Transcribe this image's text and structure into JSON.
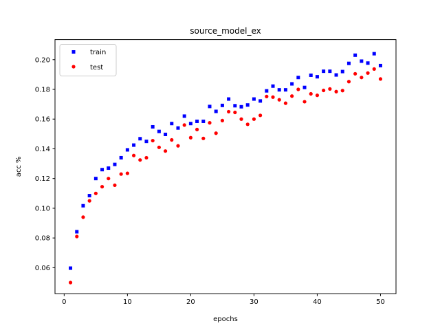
{
  "chart_data": {
    "type": "scatter",
    "title": "source_model_ex",
    "xlabel": "epochs",
    "ylabel": "acc %",
    "xlim": [
      -1.45,
      52.45
    ],
    "ylim": [
      0.0425,
      0.2135
    ],
    "xticks": [
      0,
      10,
      20,
      30,
      40,
      50
    ],
    "yticks": [
      0.06,
      0.08,
      0.1,
      0.12,
      0.14,
      0.16,
      0.18,
      0.2
    ],
    "ytick_labels": [
      "0.06",
      "0.08",
      "0.10",
      "0.12",
      "0.14",
      "0.16",
      "0.18",
      "0.20"
    ],
    "grid": false,
    "legend_position": "top-left",
    "series": [
      {
        "name": "train",
        "color": "#0000ff",
        "marker": "square",
        "x": [
          1,
          2,
          3,
          4,
          5,
          6,
          7,
          8,
          9,
          10,
          11,
          12,
          13,
          14,
          15,
          16,
          17,
          18,
          19,
          20,
          21,
          22,
          23,
          24,
          25,
          26,
          27,
          28,
          29,
          30,
          31,
          32,
          33,
          34,
          35,
          36,
          37,
          38,
          39,
          40,
          41,
          42,
          43,
          44,
          45,
          46,
          47,
          48,
          49,
          50
        ],
        "y": [
          0.0597,
          0.0842,
          0.1017,
          0.1085,
          0.12,
          0.126,
          0.127,
          0.1295,
          0.134,
          0.1393,
          0.1425,
          0.1468,
          0.145,
          0.1548,
          0.1517,
          0.1497,
          0.157,
          0.154,
          0.162,
          0.157,
          0.1585,
          0.1585,
          0.1685,
          0.1652,
          0.1692,
          0.1735,
          0.169,
          0.1683,
          0.1695,
          0.1735,
          0.1722,
          0.179,
          0.1822,
          0.1797,
          0.1797,
          0.1837,
          0.188,
          0.1813,
          0.1895,
          0.1885,
          0.1922,
          0.1922,
          0.1897,
          0.192,
          0.1975,
          0.203,
          0.199,
          0.1977,
          0.204,
          0.196
        ]
      },
      {
        "name": "test",
        "color": "#ff0000",
        "marker": "circle",
        "x": [
          1,
          2,
          3,
          4,
          5,
          6,
          7,
          8,
          9,
          10,
          11,
          12,
          13,
          14,
          15,
          16,
          17,
          18,
          19,
          20,
          21,
          22,
          23,
          24,
          25,
          26,
          27,
          28,
          29,
          30,
          31,
          32,
          33,
          34,
          35,
          36,
          37,
          38,
          39,
          40,
          41,
          42,
          43,
          44,
          45,
          46,
          47,
          48,
          49,
          50
        ],
        "y": [
          0.05,
          0.081,
          0.094,
          0.105,
          0.11,
          0.1145,
          0.12,
          0.1155,
          0.123,
          0.1235,
          0.1355,
          0.1325,
          0.134,
          0.1455,
          0.141,
          0.1385,
          0.146,
          0.142,
          0.156,
          0.1475,
          0.153,
          0.147,
          0.1575,
          0.1505,
          0.159,
          0.165,
          0.1645,
          0.16,
          0.1565,
          0.16,
          0.1625,
          0.1752,
          0.1748,
          0.173,
          0.1707,
          0.1755,
          0.18,
          0.1717,
          0.177,
          0.176,
          0.1793,
          0.1803,
          0.1785,
          0.1792,
          0.1852,
          0.1905,
          0.188,
          0.191,
          0.1937,
          0.187
        ]
      }
    ]
  }
}
